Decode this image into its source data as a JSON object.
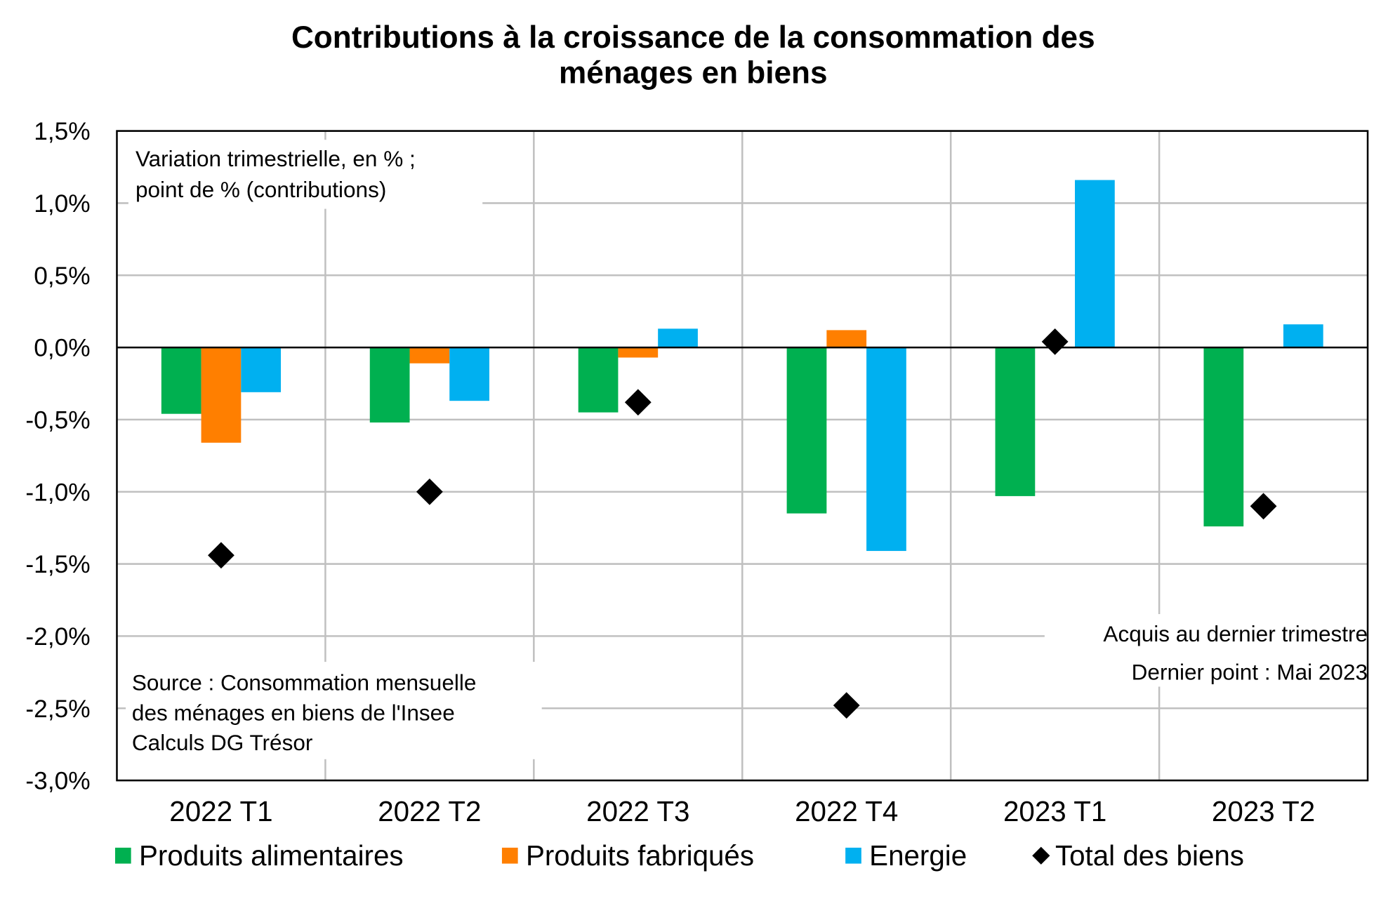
{
  "chart_data": {
    "type": "bar",
    "title": [
      "Contributions à la croissance de la consommation des",
      "ménages en biens"
    ],
    "categories": [
      "2022 T1",
      "2022 T2",
      "2022 T3",
      "2022 T4",
      "2023 T1",
      "2023 T2"
    ],
    "series": [
      {
        "name": "Produits alimentaires",
        "color": "#00b050",
        "values": [
          -0.46,
          -0.52,
          -0.45,
          -1.15,
          -1.03,
          -1.24
        ]
      },
      {
        "name": "Produits fabriqués",
        "color": "#ff7f00",
        "values": [
          -0.66,
          -0.11,
          -0.07,
          0.12,
          0,
          0
        ]
      },
      {
        "name": "Energie",
        "color": "#00b0f0",
        "values": [
          -0.31,
          -0.37,
          0.13,
          -1.41,
          1.16,
          0.16
        ]
      },
      {
        "name": "Total des biens",
        "color": "#000000",
        "type": "scatter",
        "values": [
          -1.44,
          -1.0,
          -0.38,
          -2.48,
          0.04,
          -1.1
        ]
      }
    ],
    "ylim": [
      -3,
      1.5
    ],
    "yticks": [
      {
        "value": -3,
        "label": "-3,0%"
      },
      {
        "value": -2.5,
        "label": "-2,5%"
      },
      {
        "value": -2,
        "label": "-2,0%"
      },
      {
        "value": -1.5,
        "label": "-1,5%"
      },
      {
        "value": -1,
        "label": "-1,0%"
      },
      {
        "value": -0.5,
        "label": "-0,5%"
      },
      {
        "value": 0,
        "label": "0,0%"
      },
      {
        "value": 0.5,
        "label": "0,5%"
      },
      {
        "value": 1,
        "label": "1,0%"
      },
      {
        "value": 1.5,
        "label": "1,5%"
      }
    ],
    "grid": true,
    "legend": "bottom",
    "note": [
      "Variation trimestrielle, en % ;",
      "point de % (contributions)"
    ],
    "source": [
      "Source : Consommation mensuelle",
      "des ménages en biens de l'Insee",
      "Calculs DG Trésor"
    ],
    "notes_right": [
      "Acquis au dernier trimestre",
      "Dernier point : Mai 2023"
    ]
  }
}
